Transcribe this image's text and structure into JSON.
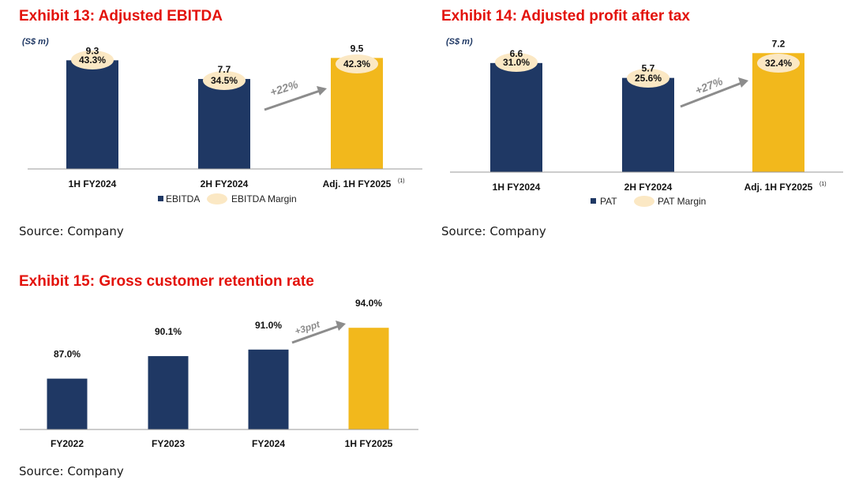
{
  "colors": {
    "title": "#e3120b",
    "bar": "#1f3864",
    "highlight": "#f2b81c",
    "margin_bubble": "#fbe8c4",
    "axis": "#999999",
    "arrow": "#8c8c8c",
    "unit": "#1f3864"
  },
  "chart_data": [
    {
      "type": "bar",
      "title": "Exhibit 13: Adjusted EBITDA",
      "unit_label": "(S$ m)",
      "categories": [
        "1H FY2024",
        "2H FY2024",
        "Adj. 1H FY2025"
      ],
      "category_superscripts": [
        "",
        "",
        "(1)"
      ],
      "series": [
        {
          "name": "EBITDA",
          "values": [
            9.3,
            7.7,
            9.5
          ],
          "labels": [
            "9.3",
            "7.7",
            "9.5"
          ]
        },
        {
          "name": "EBITDA Margin",
          "values": [
            43.3,
            34.5,
            42.3
          ],
          "labels": [
            "43.3%",
            "34.5%",
            "42.3%"
          ]
        }
      ],
      "highlight_index": 2,
      "growth_annotation": "+22%",
      "ylim": [
        0,
        10
      ],
      "legend_position": "bottom",
      "source": "Source: Company"
    },
    {
      "type": "bar",
      "title": "Exhibit 14: Adjusted profit after tax",
      "unit_label": "(S$ m)",
      "categories": [
        "1H FY2024",
        "2H FY2024",
        "Adj. 1H FY2025"
      ],
      "category_superscripts": [
        "",
        "",
        "(1)"
      ],
      "series": [
        {
          "name": "PAT",
          "values": [
            6.6,
            5.7,
            7.2
          ],
          "labels": [
            "6.6",
            "5.7",
            "7.2"
          ]
        },
        {
          "name": "PAT Margin",
          "values": [
            31.0,
            25.6,
            32.4
          ],
          "labels": [
            "31.0%",
            "25.6%",
            "32.4%"
          ]
        }
      ],
      "highlight_index": 2,
      "growth_annotation": "+27%",
      "ylim": [
        0,
        7.5
      ],
      "legend_position": "bottom",
      "source": "Source: Company"
    },
    {
      "type": "bar",
      "title": "Exhibit 15: Gross customer retention rate",
      "unit_label": "",
      "categories": [
        "FY2022",
        "FY2023",
        "FY2024",
        "1H FY2025"
      ],
      "category_superscripts": [
        "",
        "",
        "",
        ""
      ],
      "series": [
        {
          "name": "Gross customer retention rate",
          "values": [
            87.0,
            90.1,
            91.0,
            94.0
          ],
          "labels": [
            "87.0%",
            "90.1%",
            "91.0%",
            "94.0%"
          ]
        }
      ],
      "highlight_index": 3,
      "growth_annotation": "+3ppt",
      "ylim": [
        80,
        95
      ],
      "legend_position": "none",
      "source": "Source: Company"
    }
  ]
}
